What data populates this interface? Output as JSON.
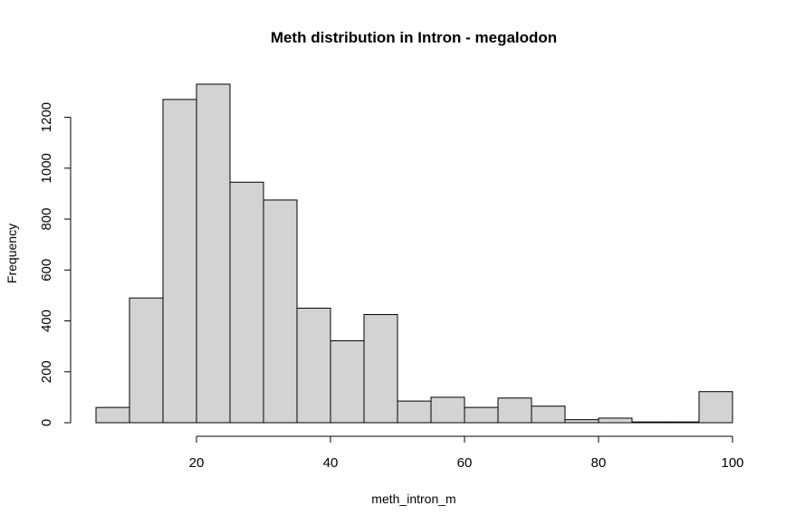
{
  "chart_data": {
    "type": "histogram",
    "title": "Meth distribution in Intron - megalodon",
    "xlabel": "meth_intron_m",
    "ylabel": "Frequency",
    "bar_color": "#d3d3d3",
    "edge_color": "#000000",
    "xlim": [
      5,
      100
    ],
    "ylim": [
      0,
      1330
    ],
    "xticks": [
      20,
      40,
      60,
      80,
      100
    ],
    "yticks": [
      0,
      200,
      400,
      600,
      800,
      1000,
      1200
    ],
    "bins": [
      {
        "x0": 5,
        "x1": 10,
        "count": 60
      },
      {
        "x0": 10,
        "x1": 15,
        "count": 490
      },
      {
        "x0": 15,
        "x1": 20,
        "count": 1270
      },
      {
        "x0": 20,
        "x1": 25,
        "count": 1330
      },
      {
        "x0": 25,
        "x1": 30,
        "count": 945
      },
      {
        "x0": 30,
        "x1": 35,
        "count": 875
      },
      {
        "x0": 35,
        "x1": 40,
        "count": 450
      },
      {
        "x0": 40,
        "x1": 45,
        "count": 322
      },
      {
        "x0": 45,
        "x1": 50,
        "count": 425
      },
      {
        "x0": 50,
        "x1": 55,
        "count": 85
      },
      {
        "x0": 55,
        "x1": 60,
        "count": 100
      },
      {
        "x0": 60,
        "x1": 65,
        "count": 60
      },
      {
        "x0": 65,
        "x1": 70,
        "count": 97
      },
      {
        "x0": 70,
        "x1": 75,
        "count": 65
      },
      {
        "x0": 75,
        "x1": 80,
        "count": 12
      },
      {
        "x0": 80,
        "x1": 85,
        "count": 18
      },
      {
        "x0": 85,
        "x1": 90,
        "count": 3
      },
      {
        "x0": 90,
        "x1": 95,
        "count": 3
      },
      {
        "x0": 95,
        "x1": 100,
        "count": 122
      }
    ]
  }
}
